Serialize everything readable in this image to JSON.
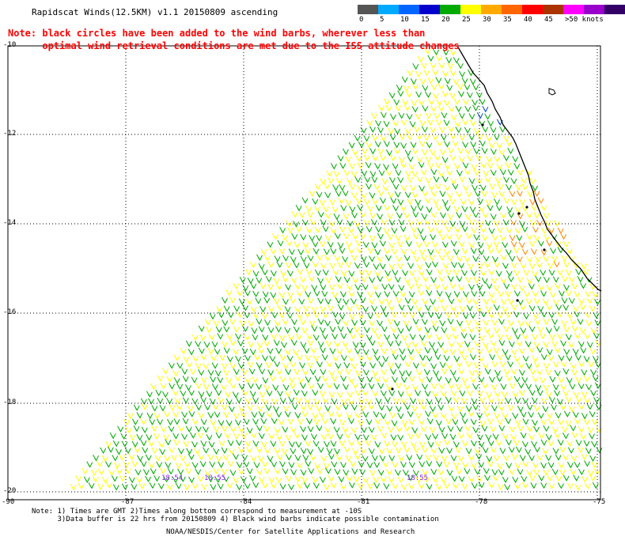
{
  "title": "Rapidscat Winds(12.5KM) v1.1 20150809 ascending",
  "note_line1": "Note: black circles have been added to the wind barbs, wherever less than",
  "note_line2": "      optimal wind retrieval conditions are met due to the ISS attitude changes",
  "legend": {
    "colors": [
      "#555555",
      "#00aaff",
      "#0066ff",
      "#0000cc",
      "#00aa00",
      "#ffff00",
      "#ffaa00",
      "#ff6600",
      "#ff0000",
      "#aa3300",
      "#ff00ff",
      "#9900cc",
      "#330066"
    ],
    "labels": [
      "0",
      "5",
      "10",
      "15",
      "20",
      "25",
      "30",
      "35",
      "40",
      "45",
      ">50 knots"
    ]
  },
  "lat_labels": [
    "-10",
    "-12",
    "-14",
    "-16",
    "-18",
    "-20"
  ],
  "lon_labels": [
    "-90",
    "-87",
    "-84",
    "-81",
    "-78",
    "-75"
  ],
  "time_labels": [
    "18:54",
    "18:55",
    "18:55"
  ],
  "footnote_line1": "Note: 1) Times are GMT 2)Times along bottom correspond to measurement at -10S",
  "footnote_line2": "      3)Data buffer is 22 hrs from 20150809 4) Black wind barbs indicate possible contamination",
  "credit": "NOAA/NESDIS/Center for Satellite Applications and Research"
}
